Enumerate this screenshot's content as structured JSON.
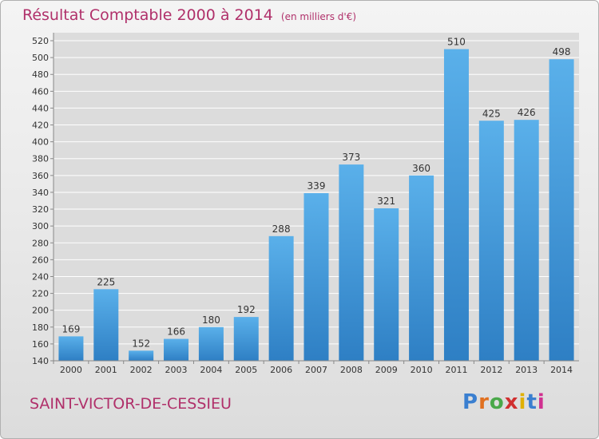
{
  "title": "Résultat Comptable 2000 à 2014",
  "subtitle": "(en milliers d'€)",
  "commune": "SAINT-VICTOR-DE-CESSIEU",
  "logo": {
    "text": "Proxiti",
    "colors": [
      "#3a7fd0",
      "#e07020",
      "#4aa84a",
      "#d03030",
      "#e0b000",
      "#3a7fd0",
      "#d03090"
    ]
  },
  "colors": {
    "title": "#b0306a",
    "bar_light": "#5ab0ea",
    "bar_dark": "#2e7fc4",
    "grid": "#ffffff"
  },
  "chart_data": {
    "type": "bar",
    "title": "Résultat Comptable 2000 à 2014",
    "xlabel": "",
    "ylabel": "",
    "categories": [
      "2000",
      "2001",
      "2002",
      "2003",
      "2004",
      "2005",
      "2006",
      "2007",
      "2008",
      "2009",
      "2010",
      "2011",
      "2012",
      "2013",
      "2014"
    ],
    "values": [
      169,
      225,
      152,
      166,
      180,
      192,
      288,
      339,
      373,
      321,
      360,
      510,
      425,
      426,
      498
    ],
    "data_labels": [
      "169",
      "225",
      "152",
      "166",
      "180",
      "192",
      "288",
      "339",
      "373",
      "321",
      "360",
      "510",
      "425",
      "426",
      "498"
    ],
    "ylim": [
      140,
      520
    ],
    "yticks": [
      "140",
      "160",
      "180",
      "200",
      "220",
      "240",
      "260",
      "280",
      "300",
      "320",
      "340",
      "360",
      "380",
      "400",
      "420",
      "440",
      "460",
      "480",
      "500",
      "520"
    ],
    "grid": true
  }
}
